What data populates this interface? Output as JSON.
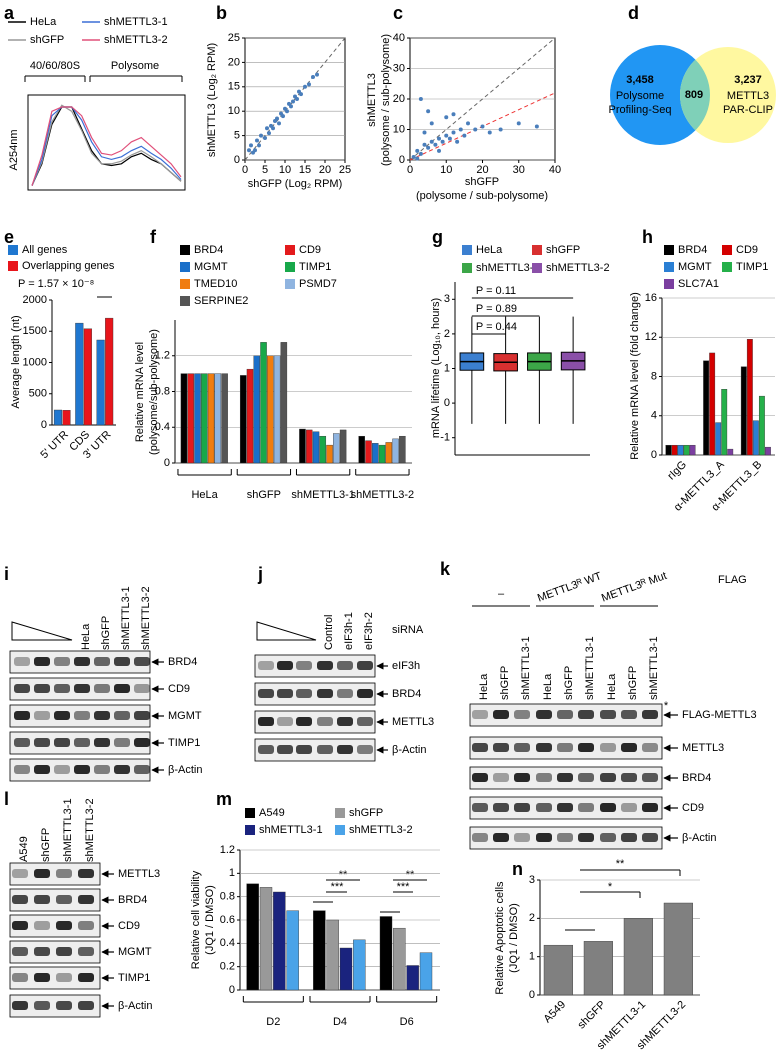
{
  "chart_data": [
    {
      "panel": "a",
      "type": "line",
      "ylabel": "A254nm",
      "annotations": [
        "40/60/80S",
        "Polysome"
      ],
      "categories": [
        null,
        null,
        null,
        null,
        null,
        null,
        null,
        null,
        null,
        null,
        null,
        null,
        null,
        null,
        null,
        null
      ],
      "series": [
        {
          "name": "HeLa",
          "color": "#000000",
          "values": [
            0.05,
            0.3,
            0.75,
            0.95,
            0.95,
            0.7,
            0.45,
            0.3,
            0.28,
            0.3,
            0.38,
            0.42,
            0.35,
            0.3,
            0.2,
            0.1
          ]
        },
        {
          "name": "shGFP",
          "color": "#999999",
          "values": [
            0.05,
            0.32,
            0.78,
            0.97,
            0.9,
            0.68,
            0.42,
            0.3,
            0.3,
            0.33,
            0.4,
            0.45,
            0.38,
            0.3,
            0.2,
            0.1
          ]
        },
        {
          "name": "shMETTL3-1",
          "color": "#3b6fd6",
          "values": [
            0.05,
            0.35,
            0.85,
            0.95,
            0.95,
            0.8,
            0.55,
            0.38,
            0.35,
            0.38,
            0.45,
            0.5,
            0.42,
            0.35,
            0.25,
            0.12
          ]
        },
        {
          "name": "shMETTL3-2",
          "color": "#e0507a",
          "values": [
            0.05,
            0.4,
            0.9,
            0.95,
            0.95,
            0.85,
            0.6,
            0.42,
            0.4,
            0.45,
            0.55,
            0.6,
            0.5,
            0.4,
            0.3,
            0.15
          ]
        }
      ]
    },
    {
      "panel": "b",
      "type": "scatter",
      "xlabel": "shGFP (Log₂ RPM)",
      "ylabel": "shMETTL3 (Log₂ RPM)",
      "xlim": [
        0,
        25
      ],
      "ylim": [
        0,
        25
      ],
      "xticks": [
        0,
        5,
        10,
        15,
        20,
        25
      ],
      "yticks": [
        0,
        5,
        10,
        15,
        20,
        25
      ],
      "grid": true,
      "color": "#4a7ebb",
      "x": [
        1,
        2,
        3,
        3.5,
        4,
        5,
        5.5,
        6,
        6.5,
        7,
        7.5,
        8,
        8.5,
        9,
        9.5,
        10,
        10.5,
        11,
        11.5,
        12,
        12.5,
        13,
        13.5,
        14,
        15,
        16,
        17,
        18,
        1.5,
        2.5
      ],
      "y": [
        2,
        1.5,
        4,
        3,
        5,
        4.5,
        6.5,
        5.5,
        7,
        6.5,
        8,
        8.5,
        7.5,
        9.5,
        9,
        10.5,
        10,
        11.5,
        11,
        12,
        13,
        12.5,
        14,
        13.5,
        15,
        15.5,
        17,
        17.5,
        3,
        2
      ]
    },
    {
      "panel": "c",
      "type": "scatter",
      "xlabel": [
        "shGFP",
        "(polysome / sub-polysome)"
      ],
      "ylabel": [
        "shMETTL3",
        "(polysome / sub-polysome)"
      ],
      "xlim": [
        0,
        40
      ],
      "ylim": [
        0,
        40
      ],
      "xticks": [
        0,
        10,
        20,
        30,
        40
      ],
      "yticks": [
        0,
        10,
        20,
        30,
        40
      ],
      "grid": true,
      "color": "#4a7ebb",
      "x": [
        1,
        2,
        3,
        4,
        5,
        6,
        7,
        8,
        9,
        10,
        11,
        12,
        13,
        14,
        15,
        16,
        18,
        20,
        22,
        25,
        30,
        2,
        4,
        6,
        8,
        10,
        3,
        5,
        35,
        12
      ],
      "y": [
        1,
        3,
        2,
        5,
        4,
        6,
        5,
        7,
        6,
        8,
        7,
        9,
        6,
        10,
        8,
        12,
        10,
        11,
        9,
        10,
        12,
        0.5,
        9,
        12,
        3,
        14,
        20,
        16,
        11,
        15
      ]
    },
    {
      "panel": "d",
      "type": "venn",
      "categories": [
        [
          "Polysome",
          "Profiling-Seq"
        ],
        null,
        [
          "METTL3",
          "PAR-CLIP"
        ]
      ],
      "values": [
        3458,
        809,
        3237
      ],
      "value_labels": [
        "3,458",
        "809",
        "3,237"
      ],
      "colors": [
        "#2196f3",
        "#7fd0b8",
        "#fff8a0"
      ]
    },
    {
      "panel": "e",
      "type": "bar",
      "ylabel": "Average length (nt)",
      "annotations": [
        "P = 1.57 × 10⁻⁸"
      ],
      "categories": [
        "5' UTR",
        "CDS",
        "3' UTR"
      ],
      "ylim": [
        0,
        2000
      ],
      "yticks": [
        0,
        500,
        1000,
        1500,
        2000
      ],
      "grid": false,
      "series": [
        {
          "name": "All genes",
          "color": "#1f77d0",
          "values": [
            240,
            1630,
            1360
          ]
        },
        {
          "name": "Overlapping genes",
          "color": "#e8151b",
          "values": [
            235,
            1540,
            1710
          ]
        }
      ]
    },
    {
      "panel": "f",
      "type": "bar",
      "ylabel": [
        "Relative mRNA level",
        "(polysome/sub-polysome)"
      ],
      "categories": [
        "HeLa",
        "shGFP",
        "shMETTL3-1",
        "shMETTL3-2"
      ],
      "ylim": [
        0,
        1.6
      ],
      "yticks": [
        0,
        0.4,
        0.8,
        1.2
      ],
      "grid": true,
      "series": [
        {
          "name": "BRD4",
          "color": "#000000",
          "values": [
            1,
            0.98,
            0.38,
            0.3
          ]
        },
        {
          "name": "CD9",
          "color": "#e31a1c",
          "values": [
            1,
            1.05,
            0.37,
            0.25
          ]
        },
        {
          "name": "MGMT",
          "color": "#1a6fc9",
          "values": [
            1,
            1.2,
            0.35,
            0.22
          ]
        },
        {
          "name": "TIMP1",
          "color": "#18a84a",
          "values": [
            1,
            1.35,
            0.3,
            0.2
          ]
        },
        {
          "name": "TMED10",
          "color": "#f07c10",
          "values": [
            1,
            1.2,
            0.2,
            0.23
          ]
        },
        {
          "name": "PSMD7",
          "color": "#8fb4e0",
          "values": [
            1,
            1.2,
            0.33,
            0.27
          ]
        },
        {
          "name": "SERPINE2",
          "color": "#555555",
          "values": [
            1,
            1.35,
            0.37,
            0.3
          ]
        }
      ]
    },
    {
      "panel": "g",
      "type": "box",
      "ylabel": "mRNA lifetime (Log₁₀, hours)",
      "annotations": [
        "P = 0.11",
        "P = 0.89",
        "P = 0.44"
      ],
      "ylim": [
        -1.5,
        3.5
      ],
      "yticks": [
        -1,
        0,
        1,
        2,
        3
      ],
      "grid": false,
      "series": [
        {
          "name": "HeLa",
          "color": "#3b7fd0",
          "min": -0.6,
          "q1": 0.95,
          "median": 1.2,
          "q3": 1.45,
          "max": 2.5
        },
        {
          "name": "shGFP",
          "color": "#d83030",
          "min": -0.6,
          "q1": 0.93,
          "median": 1.18,
          "q3": 1.43,
          "max": 2.5
        },
        {
          "name": "shMETTL3-1",
          "color": "#3ca648",
          "min": -0.6,
          "q1": 0.95,
          "median": 1.2,
          "q3": 1.45,
          "max": 2.5
        },
        {
          "name": "shMETTL3-2",
          "color": "#8a4fa8",
          "min": -0.6,
          "q1": 0.96,
          "median": 1.22,
          "q3": 1.47,
          "max": 2.5
        }
      ]
    },
    {
      "panel": "h",
      "type": "bar",
      "ylabel": "Relative mRNA level (fold change)",
      "categories": [
        "rIgG",
        "α-METTL3_A",
        "α-METTL3_B"
      ],
      "ylim": [
        0,
        16
      ],
      "yticks": [
        0,
        4,
        8,
        12,
        16
      ],
      "grid": true,
      "series": [
        {
          "name": "BRD4",
          "color": "#000000",
          "values": [
            1,
            9.6,
            9.0
          ]
        },
        {
          "name": "CD9",
          "color": "#d40000",
          "values": [
            1,
            10.4,
            11.8
          ]
        },
        {
          "name": "MGMT",
          "color": "#2a7fd4",
          "values": [
            1,
            3.3,
            3.5
          ]
        },
        {
          "name": "TIMP1",
          "color": "#25b04a",
          "values": [
            1,
            6.7,
            6.0
          ]
        },
        {
          "name": "SLC7A1",
          "color": "#7b3fa0",
          "values": [
            1,
            0.6,
            0.8
          ]
        }
      ]
    },
    {
      "panel": "m",
      "type": "bar",
      "ylabel": [
        "Relative cell viability",
        "(JQ1 / DMSO)"
      ],
      "annotations": [
        "**",
        "***",
        "**",
        "***"
      ],
      "categories": [
        "D2",
        "D4",
        "D6"
      ],
      "ylim": [
        0,
        1.2
      ],
      "yticks": [
        0,
        0.2,
        0.4,
        0.6,
        0.8,
        1,
        1.2
      ],
      "grid": true,
      "series": [
        {
          "name": "A549",
          "color": "#000000",
          "values": [
            0.91,
            0.68,
            0.63
          ]
        },
        {
          "name": "shGFP",
          "color": "#999999",
          "values": [
            0.88,
            0.6,
            0.53
          ]
        },
        {
          "name": "shMETTL3-1",
          "color": "#1a237e",
          "values": [
            0.84,
            0.36,
            0.21
          ]
        },
        {
          "name": "shMETTL3-2",
          "color": "#4aa3e8",
          "values": [
            0.68,
            0.43,
            0.32
          ]
        }
      ]
    },
    {
      "panel": "n",
      "type": "bar",
      "ylabel": [
        "Relative Apoptotic cells",
        "(JQ1 / DMSO)"
      ],
      "annotations": [
        "*",
        "**"
      ],
      "categories": [
        "A549",
        "shGFP",
        "shMETTL3-1",
        "shMETTL3-2"
      ],
      "ylim": [
        0,
        3
      ],
      "yticks": [
        0,
        1,
        2,
        3
      ],
      "grid": true,
      "color": "#808080",
      "values": [
        1.3,
        1.4,
        2.0,
        2.4
      ]
    }
  ],
  "blots": [
    {
      "panel": "i",
      "lanes": [
        "HeLa",
        "shGFP",
        "shMETTL3-1",
        "shMETTL3-2"
      ],
      "bands": [
        "BRD4",
        "CD9",
        "MGMT",
        "TIMP1",
        "β-Actin"
      ]
    },
    {
      "panel": "j",
      "treatment": "siRNA",
      "lanes": [
        "Control",
        "eIF3h-1",
        "eIF3h-2"
      ],
      "bands": [
        "eIF3h",
        "BRD4",
        "METTL3",
        "β-Actin"
      ]
    },
    {
      "panel": "k",
      "groups": [
        "–",
        "METTL3ᴿ WT",
        "METTL3ᴿ Mut"
      ],
      "tag": "FLAG",
      "note": "*",
      "lanes": [
        "HeLa",
        "shGFP",
        "shMETTL3-1",
        "HeLa",
        "shGFP",
        "shMETTL3-1",
        "HeLa",
        "shGFP",
        "shMETTL3-1"
      ],
      "bands": [
        "FLAG-METTL3",
        "METTL3",
        "BRD4",
        "CD9",
        "β-Actin"
      ]
    },
    {
      "panel": "l",
      "lanes": [
        "A549",
        "shGFP",
        "shMETTL3-1",
        "shMETTL3-2"
      ],
      "bands": [
        "METTL3",
        "BRD4",
        "CD9",
        "MGMT",
        "TIMP1",
        "β-Actin"
      ]
    }
  ]
}
